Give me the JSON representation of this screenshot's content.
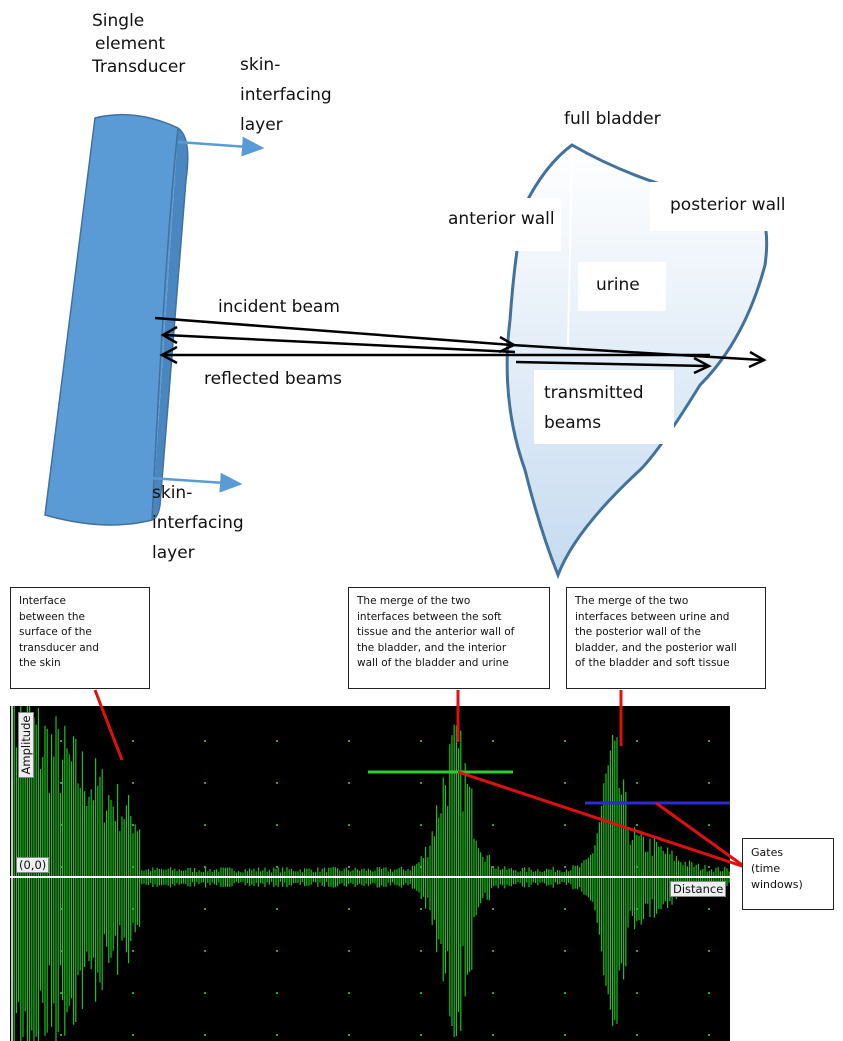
{
  "labels": {
    "transducer": [
      "Single",
      "element",
      "Transducer"
    ],
    "skin_top": [
      "skin-",
      "interfacing",
      "layer"
    ],
    "skin_bottom": [
      "skin-",
      "interfacing",
      "layer"
    ],
    "full_bladder": "full bladder",
    "anterior_wall": "anterior wall",
    "posterior_wall": "posterior wall",
    "urine": "urine",
    "incident_beam": "incident beam",
    "reflected_beams": "reflected beams",
    "transmitted_beams": [
      "transmitted",
      "beams"
    ]
  },
  "callouts": {
    "skin_interface": [
      "Interface",
      "between the",
      "surface of the",
      "transducer and",
      "the skin"
    ],
    "anterior_merge": [
      "The merge of the two",
      "interfaces between the soft",
      "tissue and the anterior wall of",
      "the bladder, and the interior",
      "wall of the bladder and urine"
    ],
    "posterior_merge": [
      "The merge of the two",
      "interfaces between urine and",
      "the posterior wall of the",
      "bladder, and the posterior wall",
      "of the bladder and soft tissue"
    ],
    "gates": [
      "Gates",
      "(time",
      "windows)"
    ]
  },
  "scope": {
    "amplitude_label": "Amplitude",
    "origin_label": "(0,0)",
    "distance_label": "Distance"
  },
  "colors": {
    "transducer_fill": "#5b9bd5",
    "bladder_fill": "#dce9f6",
    "bladder_stroke": "#41719c",
    "arrow_blue": "#5b9bd5",
    "signal_green": "#1fbf1f",
    "gate_green": "#2ecc2e",
    "gate_blue": "#2b2bd6",
    "callout_line": "#e01010",
    "scope_bg": "#000000"
  }
}
